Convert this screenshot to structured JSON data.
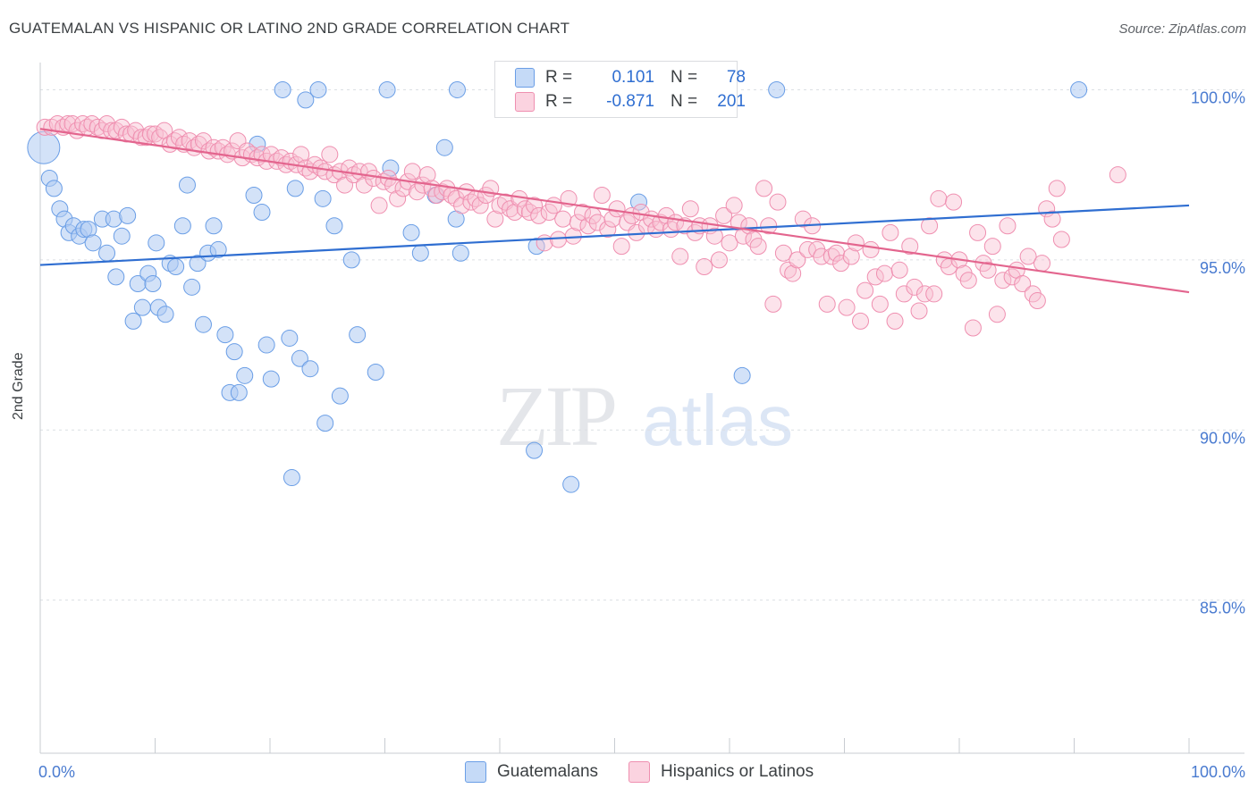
{
  "title": "GUATEMALAN VS HISPANIC OR LATINO 2ND GRADE CORRELATION CHART",
  "source": "Source: ZipAtlas.com",
  "watermark": {
    "zip": "ZIP",
    "atlas": "atlas"
  },
  "legend": {
    "rows": [
      {
        "r_label": "R =",
        "r_value": "0.101",
        "n_label": "N =",
        "n_value": "78",
        "color": "#aecbf3",
        "border": "#6a9ee6"
      },
      {
        "r_label": "R =",
        "r_value": "-0.871",
        "n_label": "N =",
        "n_value": "201",
        "color": "#f8c0d2",
        "border": "#ef8fb0"
      }
    ]
  },
  "bottom_legend": [
    {
      "label": "Guatemalans",
      "color": "#c5daf7",
      "border": "#6a9ee6"
    },
    {
      "label": "Hispanics or Latinos",
      "color": "#fbd3e0",
      "border": "#ef8fb0"
    }
  ],
  "chart_data": {
    "type": "scatter",
    "title": "GUATEMALAN VS HISPANIC OR LATINO 2ND GRADE CORRELATION CHART",
    "xlabel": "",
    "ylabel": "2nd Grade",
    "xlim": [
      0,
      100
    ],
    "ylim": [
      80.5,
      100.8
    ],
    "x_tick_labels": [
      "0.0%",
      "100.0%"
    ],
    "y_ticks": [
      100,
      95,
      90,
      85
    ],
    "y_tick_labels": [
      "100.0%",
      "95.0%",
      "90.0%",
      "85.0%"
    ],
    "grid": true,
    "series": [
      {
        "name": "Guatemalans",
        "color": "#6a9ee6",
        "fill": "#aecbf3",
        "trend": {
          "x": [
            0,
            100
          ],
          "y": [
            94.85,
            96.6
          ],
          "color": "#2f6ed1"
        },
        "points": [
          [
            0.3,
            98.3,
            "big"
          ],
          [
            0.8,
            97.4
          ],
          [
            1.2,
            97.1
          ],
          [
            1.7,
            96.5
          ],
          [
            2.1,
            96.2
          ],
          [
            2.5,
            95.8
          ],
          [
            2.9,
            96.0
          ],
          [
            3.4,
            95.7
          ],
          [
            3.8,
            95.9
          ],
          [
            4.2,
            95.9
          ],
          [
            4.6,
            95.5
          ],
          [
            5.4,
            96.2
          ],
          [
            5.8,
            95.2
          ],
          [
            6.4,
            96.2
          ],
          [
            6.6,
            94.5
          ],
          [
            7.1,
            95.7
          ],
          [
            7.6,
            96.3
          ],
          [
            8.1,
            93.2
          ],
          [
            8.5,
            94.3
          ],
          [
            8.9,
            93.6
          ],
          [
            9.4,
            94.6
          ],
          [
            9.8,
            94.3
          ],
          [
            10.3,
            93.6
          ],
          [
            10.1,
            95.5
          ],
          [
            10.9,
            93.4
          ],
          [
            11.3,
            94.9
          ],
          [
            11.8,
            94.8
          ],
          [
            12.4,
            96.0
          ],
          [
            12.8,
            97.2
          ],
          [
            13.2,
            94.2
          ],
          [
            13.7,
            94.9
          ],
          [
            14.2,
            93.1
          ],
          [
            14.6,
            95.2
          ],
          [
            15.1,
            96.0
          ],
          [
            15.5,
            95.3
          ],
          [
            16.1,
            92.8
          ],
          [
            16.5,
            91.1
          ],
          [
            16.9,
            92.3
          ],
          [
            17.3,
            91.1
          ],
          [
            17.8,
            91.6
          ],
          [
            18.6,
            96.9
          ],
          [
            18.9,
            98.4
          ],
          [
            19.3,
            96.4
          ],
          [
            19.7,
            92.5
          ],
          [
            20.1,
            91.5
          ],
          [
            21.1,
            100.0
          ],
          [
            21.7,
            92.7
          ],
          [
            21.9,
            88.6
          ],
          [
            22.2,
            97.1
          ],
          [
            22.6,
            92.1
          ],
          [
            23.1,
            99.7
          ],
          [
            23.5,
            91.8
          ],
          [
            24.2,
            100.0
          ],
          [
            24.6,
            96.8
          ],
          [
            24.8,
            90.2
          ],
          [
            25.6,
            96.0
          ],
          [
            26.1,
            91.0
          ],
          [
            27.1,
            95.0
          ],
          [
            27.6,
            92.8
          ],
          [
            29.2,
            91.7
          ],
          [
            30.2,
            100.0
          ],
          [
            30.5,
            97.7
          ],
          [
            32.3,
            95.8
          ],
          [
            33.1,
            95.2
          ],
          [
            34.4,
            96.9
          ],
          [
            35.2,
            98.3
          ],
          [
            36.2,
            96.2
          ],
          [
            36.3,
            100.0
          ],
          [
            36.6,
            95.2
          ],
          [
            43.0,
            89.4
          ],
          [
            43.2,
            95.4
          ],
          [
            46.2,
            88.4
          ],
          [
            52.1,
            96.7
          ],
          [
            59.2,
            100.0
          ],
          [
            59.6,
            100.0
          ],
          [
            61.1,
            91.6
          ],
          [
            64.1,
            100.0
          ],
          [
            90.4,
            100.0
          ]
        ]
      },
      {
        "name": "Hispanics or Latinos",
        "color": "#ef8fb0",
        "fill": "#f8c0d2",
        "trend": {
          "x": [
            0,
            100
          ],
          "y": [
            98.85,
            94.05
          ],
          "color": "#e3658e"
        },
        "points": [
          [
            0.4,
            98.9
          ],
          [
            1.0,
            98.9
          ],
          [
            1.5,
            99.0
          ],
          [
            2.0,
            98.9
          ],
          [
            2.4,
            99.0
          ],
          [
            2.8,
            99.0
          ],
          [
            3.2,
            98.8
          ],
          [
            3.7,
            99.0
          ],
          [
            4.1,
            98.9
          ],
          [
            4.5,
            99.0
          ],
          [
            5.0,
            98.9
          ],
          [
            5.4,
            98.8
          ],
          [
            5.8,
            99.0
          ],
          [
            6.2,
            98.8
          ],
          [
            6.6,
            98.8
          ],
          [
            7.1,
            98.9
          ],
          [
            7.5,
            98.7
          ],
          [
            7.9,
            98.7
          ],
          [
            8.3,
            98.8
          ],
          [
            8.8,
            98.6
          ],
          [
            9.2,
            98.6
          ],
          [
            9.6,
            98.7
          ],
          [
            10.0,
            98.7
          ],
          [
            10.4,
            98.6
          ],
          [
            10.8,
            98.8
          ],
          [
            11.3,
            98.4
          ],
          [
            11.7,
            98.5
          ],
          [
            12.1,
            98.6
          ],
          [
            12.5,
            98.4
          ],
          [
            13.0,
            98.5
          ],
          [
            13.4,
            98.3
          ],
          [
            13.8,
            98.4
          ],
          [
            14.2,
            98.5
          ],
          [
            14.7,
            98.2
          ],
          [
            15.1,
            98.3
          ],
          [
            15.5,
            98.2
          ],
          [
            15.9,
            98.3
          ],
          [
            16.3,
            98.1
          ],
          [
            16.7,
            98.2
          ],
          [
            17.2,
            98.5
          ],
          [
            17.6,
            98.0
          ],
          [
            18.0,
            98.2
          ],
          [
            18.4,
            98.1
          ],
          [
            18.9,
            98.0
          ],
          [
            19.3,
            98.1
          ],
          [
            19.7,
            97.9
          ],
          [
            20.1,
            98.1
          ],
          [
            20.6,
            97.9
          ],
          [
            21.0,
            98.0
          ],
          [
            21.4,
            97.8
          ],
          [
            21.8,
            97.9
          ],
          [
            22.3,
            97.8
          ],
          [
            22.7,
            98.1
          ],
          [
            23.1,
            97.7
          ],
          [
            23.5,
            97.6
          ],
          [
            23.9,
            97.8
          ],
          [
            24.4,
            97.7
          ],
          [
            24.8,
            97.6
          ],
          [
            25.2,
            98.1
          ],
          [
            25.6,
            97.5
          ],
          [
            26.1,
            97.6
          ],
          [
            26.5,
            97.2
          ],
          [
            26.9,
            97.7
          ],
          [
            27.3,
            97.5
          ],
          [
            27.8,
            97.6
          ],
          [
            28.2,
            97.2
          ],
          [
            28.6,
            97.6
          ],
          [
            29.0,
            97.4
          ],
          [
            29.5,
            96.6
          ],
          [
            29.9,
            97.3
          ],
          [
            30.3,
            97.4
          ],
          [
            30.7,
            97.2
          ],
          [
            31.1,
            96.8
          ],
          [
            31.6,
            97.1
          ],
          [
            32.0,
            97.3
          ],
          [
            32.4,
            97.6
          ],
          [
            32.8,
            97.0
          ],
          [
            33.3,
            97.2
          ],
          [
            33.7,
            97.5
          ],
          [
            34.1,
            97.1
          ],
          [
            34.5,
            96.9
          ],
          [
            35.0,
            97.0
          ],
          [
            35.4,
            97.1
          ],
          [
            35.8,
            96.9
          ],
          [
            36.2,
            96.8
          ],
          [
            36.7,
            96.6
          ],
          [
            37.1,
            97.0
          ],
          [
            37.5,
            96.7
          ],
          [
            37.9,
            96.8
          ],
          [
            38.3,
            96.6
          ],
          [
            38.8,
            96.9
          ],
          [
            39.2,
            97.1
          ],
          [
            39.6,
            96.2
          ],
          [
            40.0,
            96.6
          ],
          [
            40.5,
            96.7
          ],
          [
            40.9,
            96.5
          ],
          [
            41.3,
            96.4
          ],
          [
            41.7,
            96.8
          ],
          [
            42.2,
            96.5
          ],
          [
            42.6,
            96.4
          ],
          [
            43.0,
            96.6
          ],
          [
            43.4,
            96.3
          ],
          [
            43.9,
            95.5
          ],
          [
            44.3,
            96.4
          ],
          [
            44.7,
            96.6
          ],
          [
            45.1,
            95.6
          ],
          [
            45.5,
            96.2
          ],
          [
            46.0,
            96.8
          ],
          [
            46.4,
            95.7
          ],
          [
            46.8,
            96.1
          ],
          [
            47.2,
            96.4
          ],
          [
            47.7,
            96.0
          ],
          [
            48.1,
            96.3
          ],
          [
            48.5,
            96.1
          ],
          [
            48.9,
            96.9
          ],
          [
            49.4,
            95.9
          ],
          [
            49.8,
            96.2
          ],
          [
            50.2,
            96.5
          ],
          [
            50.6,
            95.4
          ],
          [
            51.1,
            96.1
          ],
          [
            51.5,
            96.3
          ],
          [
            51.9,
            95.8
          ],
          [
            52.3,
            96.4
          ],
          [
            52.8,
            96.0
          ],
          [
            53.2,
            96.2
          ],
          [
            53.6,
            95.9
          ],
          [
            54.0,
            96.1
          ],
          [
            54.5,
            96.3
          ],
          [
            54.9,
            95.9
          ],
          [
            55.3,
            96.1
          ],
          [
            55.7,
            95.1
          ],
          [
            56.1,
            96.0
          ],
          [
            56.6,
            96.5
          ],
          [
            57.0,
            95.8
          ],
          [
            57.4,
            96.0
          ],
          [
            57.8,
            94.8
          ],
          [
            58.3,
            96.0
          ],
          [
            58.7,
            95.7
          ],
          [
            59.1,
            95.0
          ],
          [
            59.5,
            96.3
          ],
          [
            60.0,
            95.5
          ],
          [
            60.4,
            96.6
          ],
          [
            60.8,
            96.1
          ],
          [
            61.2,
            95.7
          ],
          [
            61.7,
            96.0
          ],
          [
            62.1,
            95.6
          ],
          [
            62.5,
            95.4
          ],
          [
            63.0,
            97.1
          ],
          [
            63.4,
            96.0
          ],
          [
            63.8,
            93.7
          ],
          [
            64.2,
            96.7
          ],
          [
            64.7,
            95.2
          ],
          [
            65.1,
            94.7
          ],
          [
            65.5,
            94.6
          ],
          [
            65.9,
            95.0
          ],
          [
            66.4,
            96.2
          ],
          [
            66.8,
            95.3
          ],
          [
            67.2,
            96.0
          ],
          [
            67.6,
            95.3
          ],
          [
            68.0,
            95.1
          ],
          [
            68.5,
            93.7
          ],
          [
            68.9,
            95.1
          ],
          [
            69.3,
            95.2
          ],
          [
            69.7,
            94.9
          ],
          [
            70.2,
            93.6
          ],
          [
            70.6,
            95.1
          ],
          [
            71.0,
            95.5
          ],
          [
            71.4,
            93.2
          ],
          [
            71.8,
            94.1
          ],
          [
            72.3,
            95.3
          ],
          [
            72.7,
            94.5
          ],
          [
            73.1,
            93.7
          ],
          [
            73.5,
            94.6
          ],
          [
            74.0,
            95.8
          ],
          [
            74.4,
            93.2
          ],
          [
            74.8,
            94.7
          ],
          [
            75.2,
            94.0
          ],
          [
            75.7,
            95.4
          ],
          [
            76.1,
            94.2
          ],
          [
            76.5,
            93.5
          ],
          [
            77.0,
            94.0
          ],
          [
            77.4,
            96.0
          ],
          [
            77.8,
            94.0
          ],
          [
            78.2,
            96.8
          ],
          [
            78.7,
            95.0
          ],
          [
            79.1,
            94.8
          ],
          [
            79.5,
            96.7
          ],
          [
            80.0,
            95.0
          ],
          [
            80.4,
            94.6
          ],
          [
            80.8,
            94.4
          ],
          [
            81.2,
            93.0
          ],
          [
            81.6,
            95.8
          ],
          [
            82.1,
            94.9
          ],
          [
            82.5,
            94.7
          ],
          [
            82.9,
            95.4
          ],
          [
            83.3,
            93.4
          ],
          [
            83.8,
            94.4
          ],
          [
            84.2,
            96.0
          ],
          [
            84.6,
            94.5
          ],
          [
            85.0,
            94.7
          ],
          [
            85.5,
            94.3
          ],
          [
            86.0,
            95.1
          ],
          [
            86.4,
            94.0
          ],
          [
            86.8,
            93.8
          ],
          [
            87.2,
            94.9
          ],
          [
            87.6,
            96.5
          ],
          [
            88.1,
            96.2
          ],
          [
            88.5,
            97.1
          ],
          [
            88.9,
            95.6
          ],
          [
            93.8,
            97.5
          ]
        ]
      }
    ]
  }
}
